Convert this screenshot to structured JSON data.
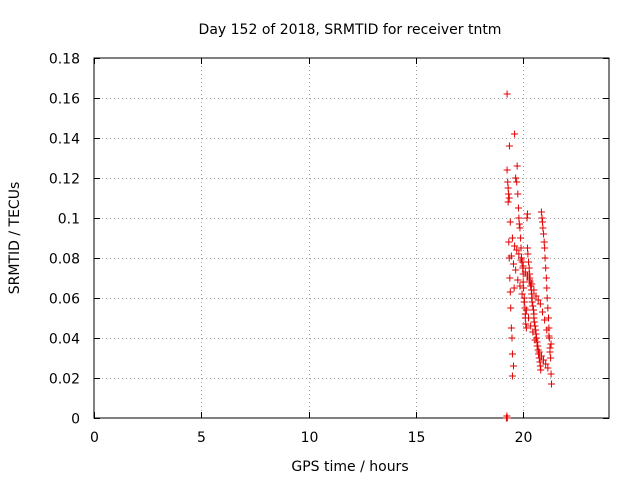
{
  "chart_data": {
    "type": "scatter",
    "title": "Day 152 of 2018, SRMTID for receiver tntm",
    "xlabel": "GPS time / hours",
    "ylabel": "SRMTID / TECUs",
    "xlim": [
      0,
      24
    ],
    "ylim": [
      0,
      0.18
    ],
    "xticks": [
      0,
      5,
      10,
      15,
      20
    ],
    "xtick_labels": [
      "0",
      "5",
      "10",
      "15",
      "20"
    ],
    "yticks": [
      0,
      0.02,
      0.04,
      0.06,
      0.08,
      0.1,
      0.12,
      0.14,
      0.16,
      0.18
    ],
    "ytick_labels": [
      "0",
      "0.02",
      "0.04",
      "0.06",
      "0.08",
      "0.1",
      "0.12",
      "0.14",
      "0.16",
      "0.18"
    ],
    "grid": true,
    "marker": "+",
    "marker_color": "#e00000",
    "series": [
      {
        "name": "SRMTID",
        "x": [
          19.25,
          19.25,
          19.28,
          19.3,
          19.32,
          19.33,
          19.35,
          19.36,
          19.38,
          19.4,
          19.42,
          19.45,
          19.48,
          19.5,
          19.5,
          19.55,
          19.58,
          19.6,
          19.65,
          19.7,
          19.72,
          19.75,
          19.78,
          19.8,
          19.82,
          19.85,
          19.88,
          19.9,
          19.92,
          19.95,
          19.98,
          20.0,
          20.0,
          20.02,
          20.05,
          20.05,
          20.08,
          20.1,
          20.1,
          20.12,
          20.15,
          20.18,
          20.2,
          20.2,
          20.22,
          20.25,
          20.28,
          20.3,
          20.3,
          20.32,
          20.35,
          20.38,
          20.4,
          20.4,
          20.42,
          20.45,
          20.48,
          20.5,
          20.5,
          20.52,
          20.55,
          20.58,
          20.6,
          20.62,
          20.65,
          20.68,
          20.7,
          20.72,
          20.75,
          20.78,
          20.8,
          20.82,
          20.85,
          20.88,
          20.9,
          20.92,
          20.95,
          20.98,
          21.0,
          21.02,
          21.05,
          21.08,
          21.1,
          21.12,
          21.15,
          21.18,
          21.2,
          21.22,
          21.25,
          21.28,
          21.3,
          21.32,
          19.45,
          19.55,
          19.65,
          19.75,
          19.85,
          19.95,
          20.05,
          20.15,
          20.25,
          20.35,
          20.45,
          20.55,
          20.65,
          20.75,
          20.85,
          20.95,
          21.05,
          21.15,
          21.25,
          19.3,
          19.35,
          19.4,
          19.5,
          19.6,
          19.7,
          19.8,
          19.9,
          20.0,
          20.1,
          20.2,
          20.3,
          20.4,
          20.5,
          20.6,
          20.7,
          20.8,
          20.9,
          21.0,
          21.1,
          21.2,
          21.3,
          19.22,
          19.24,
          19.26
        ],
        "y": [
          0.162,
          0.124,
          0.118,
          0.115,
          0.112,
          0.088,
          0.08,
          0.136,
          0.07,
          0.063,
          0.055,
          0.045,
          0.04,
          0.032,
          0.021,
          0.026,
          0.065,
          0.142,
          0.12,
          0.118,
          0.126,
          0.112,
          0.105,
          0.1,
          0.097,
          0.095,
          0.09,
          0.085,
          0.08,
          0.078,
          0.075,
          0.072,
          0.068,
          0.065,
          0.06,
          0.058,
          0.055,
          0.052,
          0.05,
          0.047,
          0.045,
          0.1,
          0.102,
          0.085,
          0.082,
          0.078,
          0.075,
          0.072,
          0.07,
          0.068,
          0.066,
          0.064,
          0.062,
          0.06,
          0.058,
          0.056,
          0.054,
          0.052,
          0.05,
          0.048,
          0.046,
          0.044,
          0.042,
          0.04,
          0.038,
          0.036,
          0.034,
          0.032,
          0.03,
          0.028,
          0.026,
          0.024,
          0.103,
          0.1,
          0.098,
          0.095,
          0.092,
          0.088,
          0.085,
          0.08,
          0.075,
          0.07,
          0.065,
          0.06,
          0.055,
          0.05,
          0.045,
          0.04,
          0.035,
          0.03,
          0.022,
          0.017,
          0.081,
          0.077,
          0.074,
          0.069,
          0.066,
          0.062,
          0.058,
          0.054,
          0.05,
          0.046,
          0.043,
          0.039,
          0.036,
          0.033,
          0.031,
          0.029,
          0.027,
          0.025,
          0.033,
          0.108,
          0.11,
          0.098,
          0.09,
          0.086,
          0.084,
          0.082,
          0.079,
          0.076,
          0.073,
          0.071,
          0.069,
          0.067,
          0.064,
          0.061,
          0.059,
          0.057,
          0.053,
          0.049,
          0.044,
          0.041,
          0.037,
          0.0,
          0.001,
          0.0
        ]
      }
    ]
  }
}
